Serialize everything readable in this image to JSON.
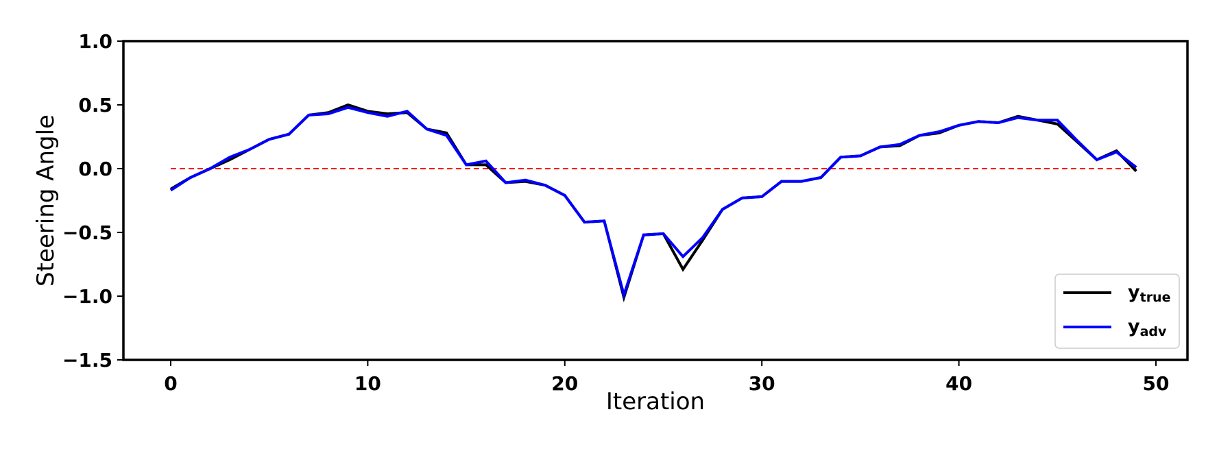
{
  "chart_data": {
    "type": "line",
    "title": "",
    "xlabel": "Iteration",
    "ylabel": "Steering Angle",
    "xlim": [
      -2.4,
      51.6
    ],
    "ylim": [
      -1.5,
      1.0
    ],
    "xticks": [
      0,
      10,
      20,
      30,
      40,
      50
    ],
    "xtick_labels": [
      "0",
      "10",
      "20",
      "30",
      "40",
      "50"
    ],
    "yticks": [
      1.0,
      0.5,
      0.0,
      -0.5,
      -1.0,
      -1.5
    ],
    "ytick_labels": [
      "1.0",
      "0.5",
      "0.0",
      "−0.5",
      "−1.0",
      "−1.5"
    ],
    "grid": false,
    "legend_position": "lower-right",
    "x": [
      0,
      1,
      2,
      3,
      4,
      5,
      6,
      7,
      8,
      9,
      10,
      11,
      12,
      13,
      14,
      15,
      16,
      17,
      18,
      19,
      20,
      21,
      22,
      23,
      24,
      25,
      26,
      27,
      28,
      29,
      30,
      31,
      32,
      33,
      34,
      35,
      36,
      37,
      38,
      39,
      40,
      41,
      42,
      43,
      44,
      45,
      46,
      47,
      48,
      49
    ],
    "series": [
      {
        "name": "y",
        "subscript": "true",
        "color": "#000000",
        "values": [
          -0.16,
          -0.07,
          0.0,
          0.07,
          0.15,
          0.23,
          0.27,
          0.42,
          0.44,
          0.5,
          0.45,
          0.43,
          0.44,
          0.31,
          0.28,
          0.03,
          0.03,
          -0.11,
          -0.1,
          -0.13,
          -0.21,
          -0.42,
          -0.41,
          -1.01,
          -0.52,
          -0.51,
          -0.79,
          -0.56,
          -0.32,
          -0.23,
          -0.22,
          -0.1,
          -0.1,
          -0.07,
          0.09,
          0.1,
          0.17,
          0.18,
          0.26,
          0.28,
          0.34,
          0.37,
          0.36,
          0.41,
          0.38,
          0.35,
          0.21,
          0.07,
          0.14,
          -0.02
        ]
      },
      {
        "name": "y",
        "subscript": "adv",
        "color": "#0000ff",
        "values": [
          -0.17,
          -0.07,
          0.0,
          0.09,
          0.15,
          0.23,
          0.27,
          0.42,
          0.43,
          0.48,
          0.44,
          0.41,
          0.45,
          0.31,
          0.26,
          0.03,
          0.06,
          -0.11,
          -0.09,
          -0.13,
          -0.21,
          -0.42,
          -0.41,
          -0.99,
          -0.52,
          -0.51,
          -0.69,
          -0.54,
          -0.32,
          -0.23,
          -0.22,
          -0.1,
          -0.1,
          -0.07,
          0.09,
          0.1,
          0.17,
          0.19,
          0.26,
          0.29,
          0.34,
          0.37,
          0.36,
          0.4,
          0.38,
          0.38,
          0.22,
          0.07,
          0.13,
          0.01
        ]
      }
    ],
    "reference_line": {
      "y": 0.0,
      "color": "#ff0000",
      "style": "dashed"
    }
  }
}
